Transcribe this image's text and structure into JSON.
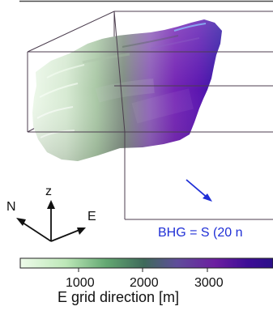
{
  "axes": {
    "north_label": "N",
    "z_label": "z",
    "east_label": "E"
  },
  "bhg": {
    "label": "BHG = S (20 n",
    "arrow_color": "#1f2fd6",
    "text_color": "#1f2fd6"
  },
  "colorbar": {
    "ticks": [
      "1000",
      "2000",
      "3000"
    ],
    "label": "E grid direction [m]",
    "colors": [
      "#eefbea",
      "#bde8b8",
      "#63a872",
      "#3e6a5a",
      "#5f4d9a",
      "#6c1fa0",
      "#3d0d96",
      "#2a0f88"
    ]
  },
  "volume": {
    "description_colors": {
      "west": "#dcefd8",
      "middle": "#6b7c6f",
      "east": "#4a1ca5"
    }
  }
}
